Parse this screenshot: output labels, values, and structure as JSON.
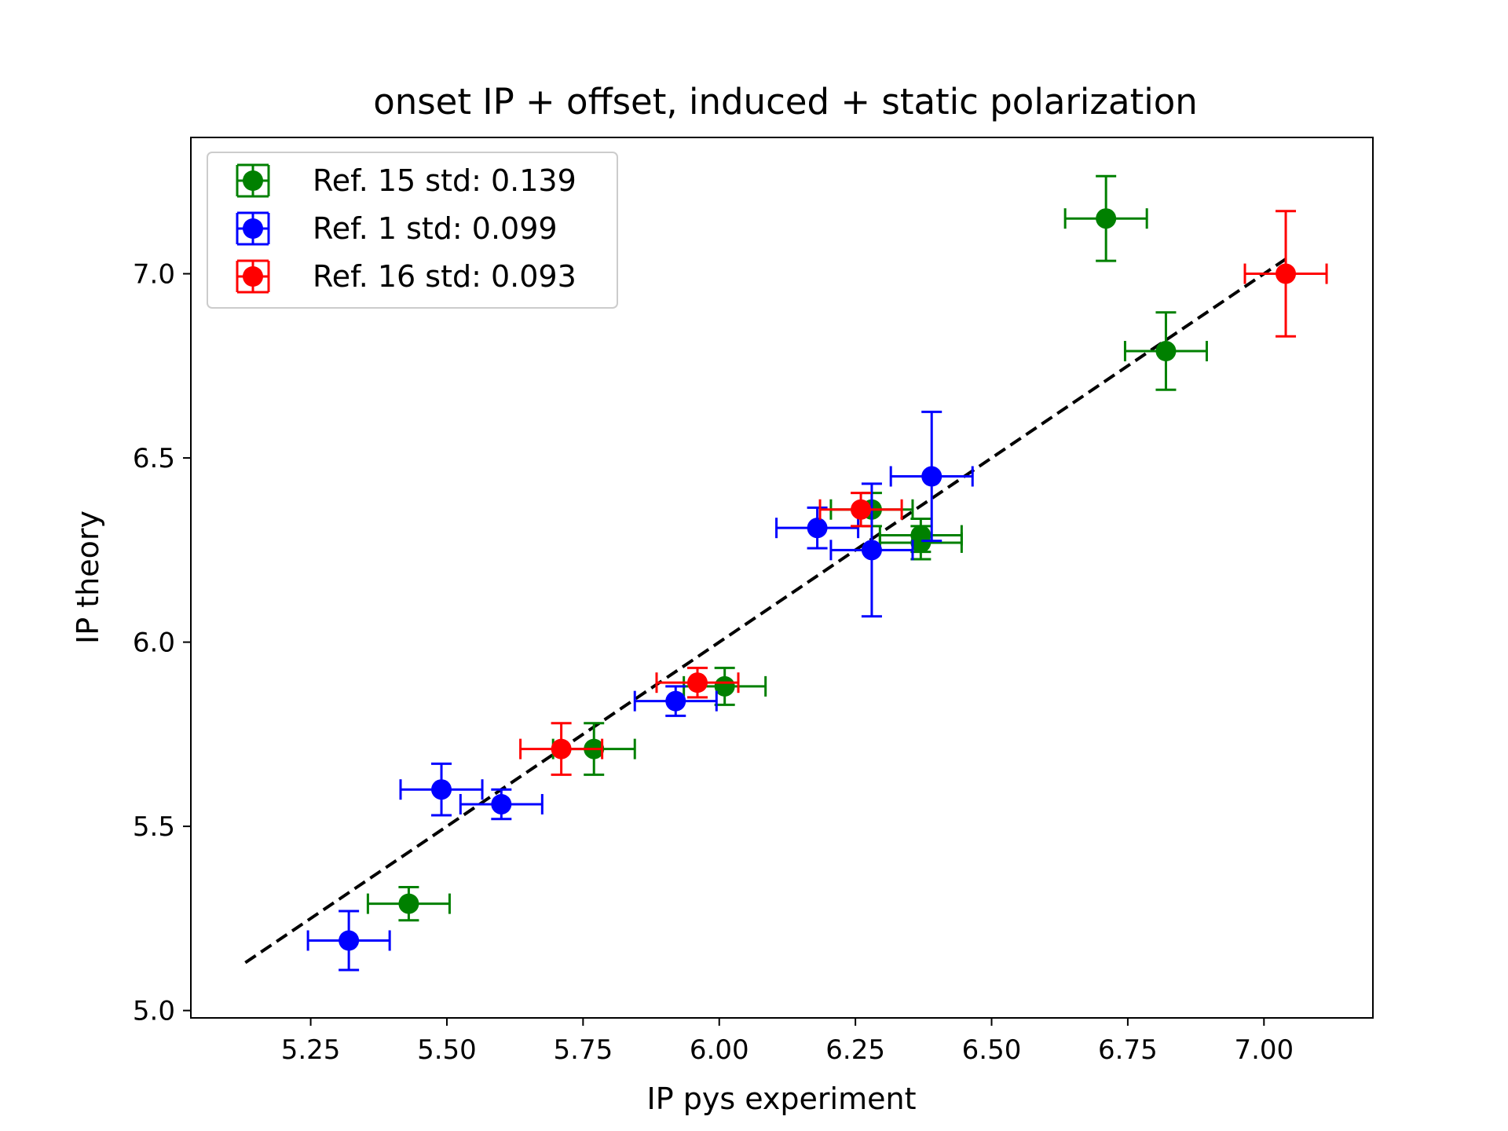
{
  "chart_data": {
    "type": "scatter",
    "title": "onset IP + offset, induced + static polarization",
    "xlabel": "IP pys experiment",
    "ylabel": "IP theory",
    "xlim": [
      5.03,
      7.2
    ],
    "ylim": [
      4.98,
      7.37
    ],
    "xticks": [
      "5.25",
      "5.50",
      "5.75",
      "6.00",
      "6.25",
      "6.50",
      "6.75",
      "7.00"
    ],
    "yticks": [
      "5.0",
      "5.5",
      "6.0",
      "6.5",
      "7.0"
    ],
    "grid": false,
    "legend_position": "upper-left",
    "fit_line": {
      "style": "dashed",
      "color": "#000000",
      "x": [
        5.13,
        7.04
      ],
      "y": [
        5.13,
        7.04
      ]
    },
    "series": [
      {
        "name": "Ref. 15 std: 0.139",
        "color": "#008000",
        "points": [
          {
            "x": 5.43,
            "y": 5.29,
            "xerr": 0.075,
            "yerr": 0.045
          },
          {
            "x": 5.77,
            "y": 5.71,
            "xerr": 0.075,
            "yerr": 0.07
          },
          {
            "x": 6.01,
            "y": 5.88,
            "xerr": 0.075,
            "yerr": 0.05
          },
          {
            "x": 6.28,
            "y": 6.36,
            "xerr": 0.075,
            "yerr": 0.045
          },
          {
            "x": 6.37,
            "y": 6.29,
            "xerr": 0.075,
            "yerr": 0.045
          },
          {
            "x": 6.37,
            "y": 6.27,
            "xerr": 0.075,
            "yerr": 0.045
          },
          {
            "x": 6.71,
            "y": 7.15,
            "xerr": 0.075,
            "yerr": 0.115
          },
          {
            "x": 6.82,
            "y": 6.79,
            "xerr": 0.075,
            "yerr": 0.105
          }
        ]
      },
      {
        "name": "Ref. 1 std: 0.099",
        "color": "#0000ff",
        "points": [
          {
            "x": 5.32,
            "y": 5.19,
            "xerr": 0.075,
            "yerr": 0.08
          },
          {
            "x": 5.49,
            "y": 5.6,
            "xerr": 0.075,
            "yerr": 0.07
          },
          {
            "x": 5.6,
            "y": 5.56,
            "xerr": 0.075,
            "yerr": 0.04
          },
          {
            "x": 5.92,
            "y": 5.84,
            "xerr": 0.075,
            "yerr": 0.04
          },
          {
            "x": 6.18,
            "y": 6.31,
            "xerr": 0.075,
            "yerr": 0.055
          },
          {
            "x": 6.28,
            "y": 6.25,
            "xerr": 0.075,
            "yerr": 0.18
          },
          {
            "x": 6.39,
            "y": 6.45,
            "xerr": 0.075,
            "yerr": 0.175
          }
        ]
      },
      {
        "name": "Ref. 16 std: 0.093",
        "color": "#ff0000",
        "points": [
          {
            "x": 5.71,
            "y": 5.71,
            "xerr": 0.075,
            "yerr": 0.07
          },
          {
            "x": 5.96,
            "y": 5.89,
            "xerr": 0.075,
            "yerr": 0.04
          },
          {
            "x": 6.26,
            "y": 6.36,
            "xerr": 0.075,
            "yerr": 0.045
          },
          {
            "x": 7.04,
            "y": 7.0,
            "xerr": 0.075,
            "yerr": 0.17
          }
        ]
      }
    ]
  }
}
